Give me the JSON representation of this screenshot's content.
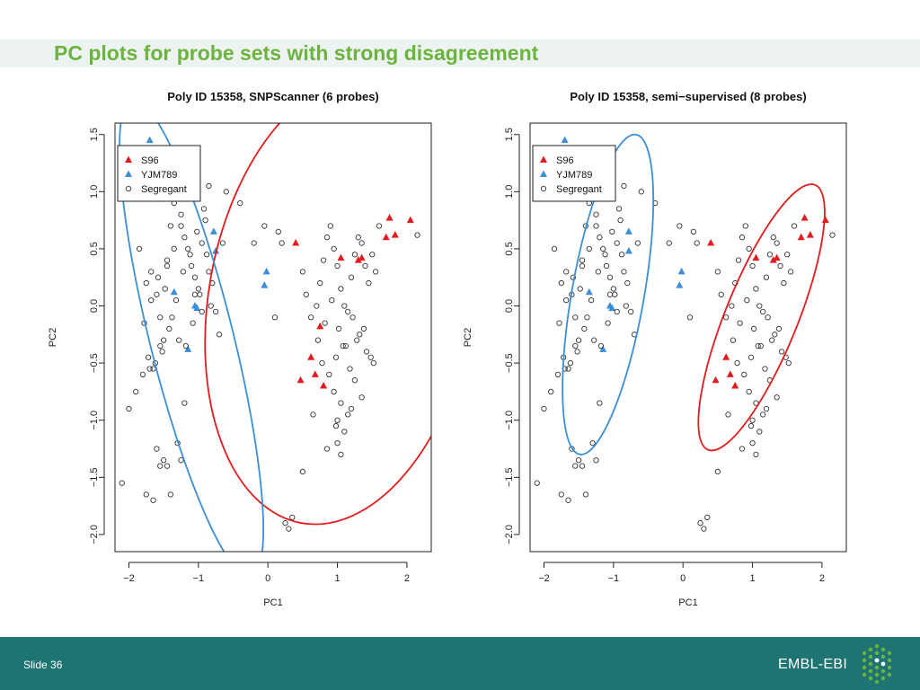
{
  "slide": {
    "title": "PC plots for probe sets with strong disagreement",
    "slide_number": "Slide 36",
    "logo_text": "EMBL-EBI"
  },
  "colors": {
    "title": "#6db33f",
    "footer": "#1d7472",
    "s96": "#e41a1c",
    "yjm789": "#3a8fd8",
    "segregant": "#333333"
  },
  "chart_data": [
    {
      "type": "scatter",
      "title": "Poly ID 15358, SNPScanner (6 probes)",
      "xlabel": "PC1",
      "ylabel": "PC2",
      "xlim": [
        -2.2,
        2.35
      ],
      "ylim": [
        -2.15,
        1.6
      ],
      "xticks": [
        -2,
        -1,
        0,
        1,
        2
      ],
      "yticks": [
        -2.0,
        -1.5,
        -1.0,
        -0.5,
        0.0,
        0.5,
        1.0,
        1.5
      ],
      "legend": {
        "position": "top-left",
        "entries": [
          "S96",
          "YJM789",
          "Segregant"
        ]
      },
      "ellipses": [
        {
          "series": "S96",
          "cx": 1.05,
          "cy": 0.05,
          "rx": 1.9,
          "ry": 1.98,
          "angle": 10
        },
        {
          "series": "YJM789",
          "cx": -1.1,
          "cy": -0.28,
          "rx": 0.6,
          "ry": 2.15,
          "angle": -14
        }
      ],
      "series": [
        {
          "name": "S96",
          "marker": "triangle",
          "color": "#e41a1c",
          "x": [
            0.4,
            1.05,
            1.3,
            1.35,
            1.7,
            1.75,
            1.83,
            2.05,
            0.75,
            0.62,
            0.68,
            0.47,
            0.8
          ],
          "y": [
            0.55,
            0.42,
            0.4,
            0.42,
            0.6,
            0.77,
            0.62,
            0.75,
            -0.18,
            -0.45,
            -0.6,
            -0.65,
            -0.7
          ]
        },
        {
          "name": "YJM789",
          "marker": "triangle",
          "color": "#3a8fd8",
          "x": [
            -1.7,
            -0.78,
            -0.75,
            -0.02,
            -0.05,
            -1.35,
            -1.05,
            -1.02,
            -1.15
          ],
          "y": [
            1.45,
            0.65,
            0.48,
            0.3,
            0.18,
            0.12,
            0.0,
            -0.02,
            -0.38
          ]
        },
        {
          "name": "Segregant",
          "marker": "circle",
          "color": "#333333",
          "x": [
            -2.05,
            -1.95,
            -1.85,
            -1.75,
            -1.68,
            -1.6,
            -1.55,
            -1.5,
            -1.45,
            -1.4,
            -1.35,
            -1.3,
            -1.25,
            -1.2,
            -1.15,
            -1.1,
            -1.05,
            -1.0,
            -0.95,
            -0.9,
            -0.85,
            -0.8,
            -0.75,
            -0.7,
            -0.65,
            -1.72,
            -1.62,
            -1.52,
            -1.42,
            -1.32,
            -1.22,
            -1.12,
            -1.02,
            -0.92,
            -0.82,
            -1.78,
            -1.68,
            -1.58,
            -1.48,
            -1.38,
            -1.28,
            -1.18,
            -1.08,
            -0.98,
            -0.88,
            -1.65,
            -1.55,
            -1.45,
            -1.35,
            -1.25,
            -1.15,
            -1.05,
            -0.95,
            -0.85,
            -0.6,
            -0.4,
            -0.2,
            0.15,
            0.2,
            0.5,
            0.55,
            0.62,
            0.7,
            0.75,
            0.8,
            0.85,
            0.9,
            0.95,
            1.0,
            1.05,
            1.1,
            1.15,
            1.2,
            1.25,
            1.3,
            1.35,
            1.4,
            1.45,
            1.5,
            1.55,
            0.72,
            0.82,
            0.92,
            1.02,
            1.12,
            1.22,
            1.32,
            1.42,
            1.52,
            0.78,
            0.88,
            0.98,
            1.08,
            1.18,
            1.28,
            1.38,
            1.48,
            0.95,
            1.05,
            1.15,
            1.25,
            1.35,
            1.0,
            1.1,
            1.2,
            0.65,
            0.85,
            1.0,
            1.05,
            0.98,
            0.25,
            0.3,
            0.35,
            -2.1,
            -2.0,
            -1.9,
            -1.8,
            -1.7,
            -1.6,
            -1.5,
            -1.45,
            -1.4,
            -1.3,
            -1.25,
            -1.2,
            -1.55,
            -1.65,
            -1.75,
            1.6,
            2.15,
            -0.05,
            0.1,
            0.5
          ],
          "y": [
            1.2,
            1.0,
            0.5,
            0.2,
            0.3,
            0.1,
            -0.1,
            -0.3,
            0.4,
            0.7,
            0.9,
            1.0,
            0.8,
            0.6,
            0.5,
            0.35,
            0.25,
            0.15,
            0.55,
            0.75,
            1.05,
            0.2,
            -0.05,
            -0.25,
            0.55,
            -0.45,
            -0.5,
            -0.4,
            -0.2,
            0.05,
            0.3,
            0.45,
            0.65,
            0.85,
            0.0,
            -0.15,
            0.05,
            0.25,
            0.15,
            -0.1,
            -0.3,
            -0.35,
            -0.15,
            0.1,
            0.45,
            -0.55,
            -0.35,
            0.35,
            0.5,
            0.7,
            0.95,
            0.1,
            -0.05,
            0.3,
            1.0,
            0.9,
            0.55,
            0.65,
            0.55,
            0.3,
            0.1,
            -0.1,
            0.0,
            0.2,
            0.4,
            0.6,
            0.7,
            0.5,
            0.35,
            0.15,
            0.0,
            -0.05,
            0.25,
            0.45,
            0.6,
            0.55,
            0.35,
            0.2,
            0.45,
            0.3,
            -0.3,
            -0.15,
            0.05,
            -0.2,
            -0.35,
            -0.1,
            -0.25,
            -0.4,
            -0.5,
            -0.5,
            -0.6,
            -0.45,
            -0.35,
            -0.55,
            -0.3,
            -0.2,
            -0.45,
            -0.75,
            -0.85,
            -0.95,
            -0.65,
            -0.8,
            -1.0,
            -1.1,
            -0.9,
            -0.95,
            -1.25,
            -1.2,
            -1.3,
            -1.05,
            -1.9,
            -1.95,
            -1.85,
            -1.55,
            -0.9,
            -0.75,
            -0.6,
            -0.55,
            -1.25,
            -1.35,
            -1.4,
            -1.65,
            -1.2,
            -1.35,
            -0.85,
            -1.4,
            -1.7,
            -1.65,
            0.7,
            0.62,
            0.7,
            -0.1,
            -1.45
          ],
          "note": "approximate"
        }
      ]
    },
    {
      "type": "scatter",
      "title": "Poly ID 15358, semi−supervised (8 probes)",
      "xlabel": "PC1",
      "ylabel": "PC2",
      "xlim": [
        -2.2,
        2.35
      ],
      "ylim": [
        -2.15,
        1.6
      ],
      "xticks": [
        -2,
        -1,
        0,
        1,
        2
      ],
      "yticks": [
        -2.0,
        -1.5,
        -1.0,
        -0.5,
        0.0,
        0.5,
        1.0,
        1.5
      ],
      "legend": {
        "position": "top-left",
        "entries": [
          "S96",
          "YJM789",
          "Segregant"
        ]
      },
      "ellipses": [
        {
          "series": "S96",
          "cx": 1.13,
          "cy": -0.1,
          "rx": 0.52,
          "ry": 1.25,
          "angle": 22
        },
        {
          "series": "YJM789",
          "cx": -1.08,
          "cy": 0.1,
          "rx": 0.52,
          "ry": 1.42,
          "angle": 10
        }
      ],
      "series": [
        {
          "name": "S96",
          "marker": "triangle",
          "color": "#e41a1c",
          "x": [
            0.4,
            1.05,
            1.3,
            1.35,
            1.7,
            1.75,
            1.83,
            2.05,
            0.62,
            0.68,
            0.47,
            0.75
          ],
          "y": [
            0.55,
            0.42,
            0.4,
            0.42,
            0.6,
            0.77,
            0.62,
            0.75,
            -0.45,
            -0.6,
            -0.65,
            -0.7
          ]
        },
        {
          "name": "YJM789",
          "marker": "triangle",
          "color": "#3a8fd8",
          "x": [
            -1.7,
            -0.78,
            -0.78,
            -0.02,
            -0.05,
            -1.35,
            -1.05,
            -1.02,
            -1.15
          ],
          "y": [
            1.45,
            0.65,
            0.48,
            0.3,
            0.18,
            0.12,
            0.0,
            -0.02,
            -0.38
          ]
        },
        {
          "name": "Segregant",
          "marker": "circle",
          "color": "#333333",
          "x": [
            -2.05,
            -1.95,
            -1.85,
            -1.75,
            -1.68,
            -1.6,
            -1.55,
            -1.5,
            -1.45,
            -1.4,
            -1.35,
            -1.3,
            -1.25,
            -1.2,
            -1.15,
            -1.1,
            -1.05,
            -1.0,
            -0.95,
            -0.9,
            -0.85,
            -0.8,
            -0.75,
            -0.7,
            -0.65,
            -1.72,
            -1.62,
            -1.52,
            -1.42,
            -1.32,
            -1.22,
            -1.12,
            -1.02,
            -0.92,
            -0.82,
            -1.78,
            -1.68,
            -1.58,
            -1.48,
            -1.38,
            -1.28,
            -1.18,
            -1.08,
            -0.98,
            -0.88,
            -1.65,
            -1.55,
            -1.45,
            -1.35,
            -1.25,
            -1.15,
            -1.05,
            -0.95,
            -0.85,
            -0.6,
            -0.4,
            -0.2,
            0.15,
            0.2,
            0.5,
            0.55,
            0.62,
            0.7,
            0.75,
            0.8,
            0.85,
            0.9,
            0.95,
            1.0,
            1.05,
            1.1,
            1.15,
            1.2,
            1.25,
            1.3,
            1.35,
            1.4,
            1.45,
            1.5,
            1.55,
            0.72,
            0.82,
            0.92,
            1.02,
            1.12,
            1.22,
            1.32,
            1.42,
            1.52,
            0.78,
            0.88,
            0.98,
            1.08,
            1.18,
            1.28,
            1.38,
            1.48,
            0.95,
            1.05,
            1.15,
            1.25,
            1.35,
            1.0,
            1.1,
            1.2,
            0.65,
            0.85,
            1.0,
            1.05,
            0.98,
            0.25,
            0.3,
            0.35,
            -2.1,
            -2.0,
            -1.9,
            -1.8,
            -1.7,
            -1.6,
            -1.5,
            -1.45,
            -1.4,
            -1.3,
            -1.25,
            -1.2,
            -1.55,
            -1.65,
            -1.75,
            1.6,
            2.15,
            -0.05,
            0.1,
            0.5
          ],
          "y": [
            1.2,
            1.0,
            0.5,
            0.2,
            0.3,
            0.1,
            -0.1,
            -0.3,
            0.4,
            0.7,
            0.9,
            1.0,
            0.8,
            0.6,
            0.5,
            0.35,
            0.25,
            0.15,
            0.55,
            0.75,
            1.05,
            0.2,
            -0.05,
            -0.25,
            0.55,
            -0.45,
            -0.5,
            -0.4,
            -0.2,
            0.05,
            0.3,
            0.45,
            0.65,
            0.85,
            0.0,
            -0.15,
            0.05,
            0.25,
            0.15,
            -0.1,
            -0.3,
            -0.35,
            -0.15,
            0.1,
            0.45,
            -0.55,
            -0.35,
            0.35,
            0.5,
            0.7,
            0.95,
            0.1,
            -0.05,
            0.3,
            1.0,
            0.9,
            0.55,
            0.65,
            0.55,
            0.3,
            0.1,
            -0.1,
            0.0,
            0.2,
            0.4,
            0.6,
            0.7,
            0.5,
            0.35,
            0.15,
            0.0,
            -0.05,
            0.25,
            0.45,
            0.6,
            0.55,
            0.35,
            0.2,
            0.45,
            0.3,
            -0.3,
            -0.15,
            0.05,
            -0.2,
            -0.35,
            -0.1,
            -0.25,
            -0.4,
            -0.5,
            -0.5,
            -0.6,
            -0.45,
            -0.35,
            -0.55,
            -0.3,
            -0.2,
            -0.45,
            -0.75,
            -0.85,
            -0.95,
            -0.65,
            -0.8,
            -1.0,
            -1.1,
            -0.9,
            -0.95,
            -1.25,
            -1.2,
            -1.3,
            -1.05,
            -1.9,
            -1.95,
            -1.85,
            -1.55,
            -0.9,
            -0.75,
            -0.6,
            -0.55,
            -1.25,
            -1.35,
            -1.4,
            -1.65,
            -1.2,
            -1.35,
            -0.85,
            -1.4,
            -1.7,
            -1.65,
            0.7,
            0.62,
            0.7,
            -0.1,
            -1.45
          ]
        }
      ]
    }
  ]
}
